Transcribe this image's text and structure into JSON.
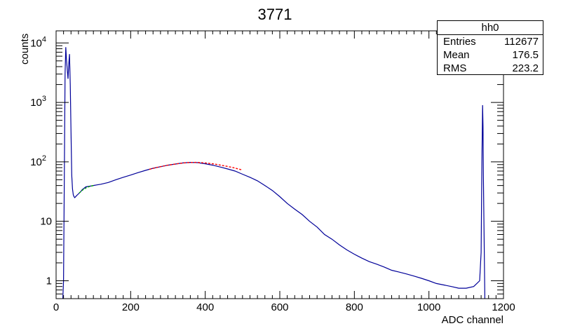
{
  "chart_data": {
    "type": "histogram",
    "title": "3771",
    "xlabel": "ADC channel",
    "ylabel": "counts",
    "xlim": [
      0,
      1200
    ],
    "ylim": [
      0.5,
      16000
    ],
    "log_y": true,
    "x_ticks": [
      "0",
      "200",
      "400",
      "600",
      "800",
      "1000",
      "1200"
    ],
    "y_ticks": [
      {
        "value": 1,
        "label": "1"
      },
      {
        "value": 10,
        "label": "10"
      },
      {
        "value": 100,
        "label": "10",
        "sup": "2"
      },
      {
        "value": 1000,
        "label": "10",
        "sup": "3"
      },
      {
        "value": 10000,
        "label": "10",
        "sup": "4"
      }
    ],
    "stats": {
      "name": "hh0",
      "rows": [
        {
          "label": "Entries",
          "value": "112677"
        },
        {
          "label": "Mean",
          "value": "176.5"
        },
        {
          "label": "RMS",
          "value": "223.2"
        }
      ]
    },
    "series": [
      {
        "color": "#000099",
        "points": [
          [
            18,
            0.5
          ],
          [
            20,
            1
          ],
          [
            22,
            50
          ],
          [
            24,
            3000
          ],
          [
            26,
            8500
          ],
          [
            28,
            5000
          ],
          [
            30,
            3500
          ],
          [
            32,
            2500
          ],
          [
            34,
            4500
          ],
          [
            36,
            6500
          ],
          [
            38,
            2000
          ],
          [
            40,
            300
          ],
          [
            42,
            60
          ],
          [
            44,
            35
          ],
          [
            46,
            28
          ],
          [
            48,
            26
          ],
          [
            50,
            25
          ],
          [
            55,
            27
          ],
          [
            60,
            29
          ],
          [
            65,
            31
          ],
          [
            70,
            34
          ],
          [
            75,
            36
          ],
          [
            80,
            38
          ],
          [
            90,
            39
          ],
          [
            100,
            40
          ],
          [
            110,
            41
          ],
          [
            120,
            42
          ],
          [
            140,
            45
          ],
          [
            160,
            50
          ],
          [
            180,
            55
          ],
          [
            200,
            60
          ],
          [
            220,
            66
          ],
          [
            240,
            72
          ],
          [
            260,
            78
          ],
          [
            280,
            83
          ],
          [
            300,
            88
          ],
          [
            320,
            92
          ],
          [
            340,
            96
          ],
          [
            360,
            98
          ],
          [
            380,
            97
          ],
          [
            400,
            93
          ],
          [
            420,
            88
          ],
          [
            440,
            82
          ],
          [
            460,
            76
          ],
          [
            480,
            70
          ],
          [
            500,
            62
          ],
          [
            520,
            55
          ],
          [
            540,
            48
          ],
          [
            560,
            40
          ],
          [
            580,
            33
          ],
          [
            600,
            26
          ],
          [
            620,
            20
          ],
          [
            640,
            16
          ],
          [
            660,
            13
          ],
          [
            680,
            10
          ],
          [
            700,
            8
          ],
          [
            720,
            6
          ],
          [
            740,
            5
          ],
          [
            760,
            4
          ],
          [
            780,
            3.3
          ],
          [
            800,
            2.8
          ],
          [
            820,
            2.4
          ],
          [
            840,
            2.1
          ],
          [
            860,
            1.9
          ],
          [
            880,
            1.7
          ],
          [
            900,
            1.5
          ],
          [
            920,
            1.4
          ],
          [
            940,
            1.3
          ],
          [
            960,
            1.2
          ],
          [
            980,
            1.1
          ],
          [
            1000,
            1.0
          ],
          [
            1020,
            0.9
          ],
          [
            1040,
            0.85
          ],
          [
            1060,
            0.8
          ],
          [
            1080,
            0.75
          ],
          [
            1100,
            0.75
          ],
          [
            1120,
            0.8
          ],
          [
            1136,
            1.0
          ],
          [
            1140,
            3
          ],
          [
            1142,
            100
          ],
          [
            1144,
            900
          ],
          [
            1145,
            400
          ],
          [
            1146,
            60
          ],
          [
            1148,
            5
          ],
          [
            1150,
            0.5
          ]
        ]
      },
      {
        "color": "#00aa00",
        "points": [
          [
            62,
            30
          ],
          [
            72,
            34
          ],
          [
            82,
            37
          ],
          [
            92,
            39
          ],
          [
            102,
            40
          ]
        ]
      },
      {
        "color": "#ff0000",
        "points": [
          [
            250,
            75
          ],
          [
            275,
            82
          ],
          [
            300,
            88
          ],
          [
            325,
            93
          ],
          [
            350,
            97
          ],
          [
            375,
            98
          ],
          [
            400,
            96
          ],
          [
            425,
            92
          ],
          [
            450,
            86
          ],
          [
            475,
            80
          ],
          [
            500,
            73
          ]
        ]
      }
    ]
  }
}
